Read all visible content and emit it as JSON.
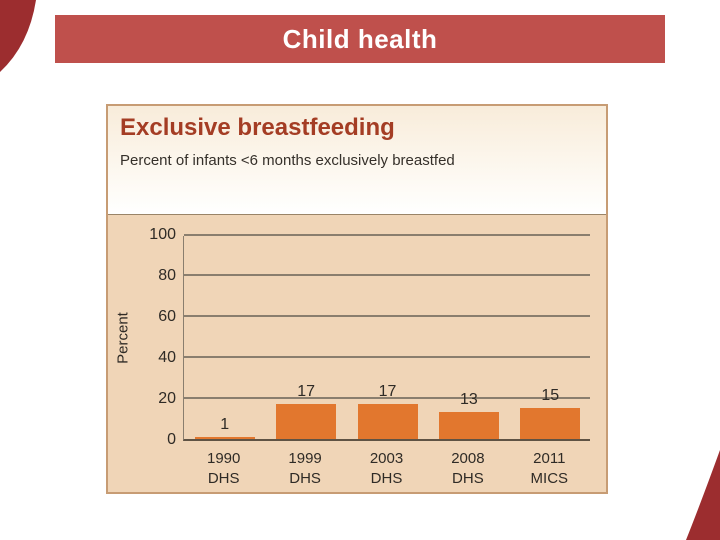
{
  "slide": {
    "title": "Child health"
  },
  "panel": {
    "title": "Exclusive breastfeeding",
    "subtitle": "Percent of infants <6 months exclusively breastfed"
  },
  "chart_data": {
    "type": "bar",
    "title": "Exclusive breastfeeding",
    "subtitle": "Percent of infants <6 months exclusively breastfed",
    "ylabel": "Percent",
    "ylim": [
      0,
      100
    ],
    "yticks": [
      0,
      20,
      40,
      60,
      80,
      100
    ],
    "grid": true,
    "legend": false,
    "categories": [
      {
        "year": "1990",
        "source": "DHS"
      },
      {
        "year": "1999",
        "source": "DHS"
      },
      {
        "year": "2003",
        "source": "DHS"
      },
      {
        "year": "2008",
        "source": "DHS"
      },
      {
        "year": "2011",
        "source": "MICS"
      }
    ],
    "values": [
      1,
      17,
      17,
      13,
      15
    ]
  },
  "colors": {
    "header_bg": "#bf504c",
    "corner_accent": "#9c2d2f",
    "bar_color": "#e2772e",
    "plot_bg": "#f0d5b7",
    "panel_border": "#c79c74",
    "grid_color": "#8a7e6e",
    "axis_color": "#5f5344",
    "chart_title_color": "#a43d24"
  }
}
